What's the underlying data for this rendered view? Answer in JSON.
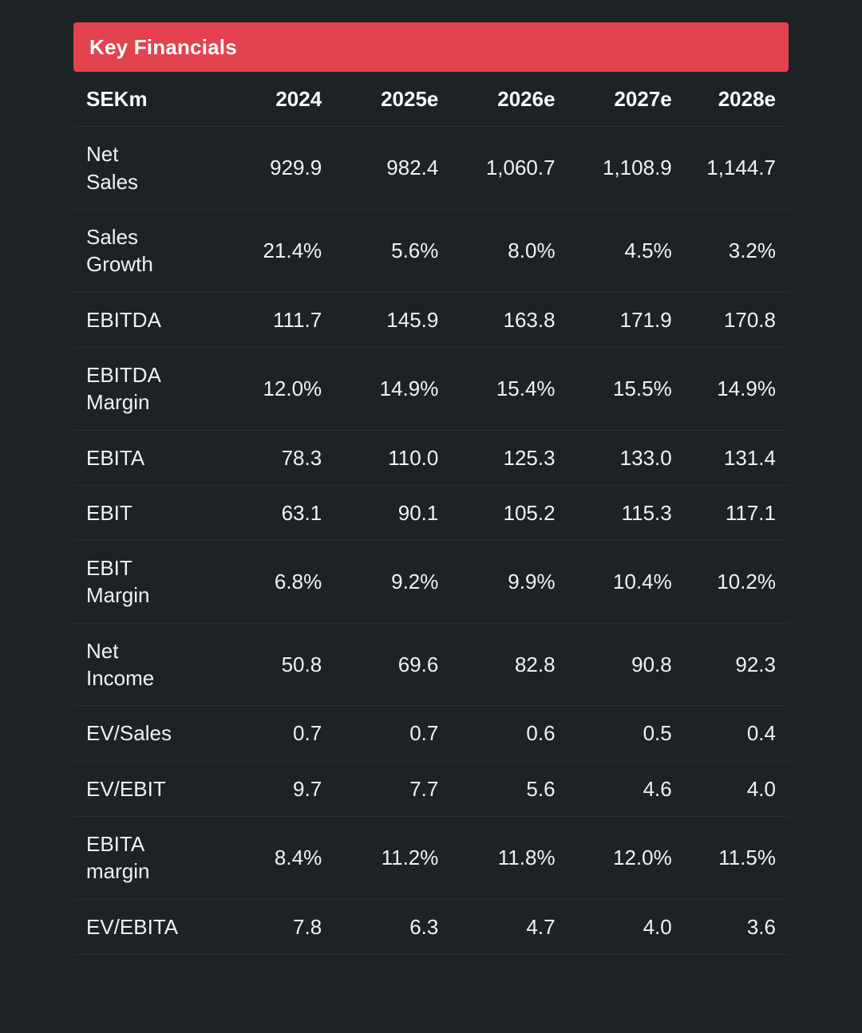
{
  "card": {
    "title": "Key Financials"
  },
  "table": {
    "unit_header": "SEKm",
    "columns": [
      "2024",
      "2025e",
      "2026e",
      "2027e",
      "2028e"
    ],
    "rows": [
      {
        "label": "Net\nSales",
        "values": [
          "929.9",
          "982.4",
          "1,060.7",
          "1,108.9",
          "1,144.7"
        ]
      },
      {
        "label": "Sales\nGrowth",
        "values": [
          "21.4%",
          "5.6%",
          "8.0%",
          "4.5%",
          "3.2%"
        ]
      },
      {
        "label": "EBITDA",
        "values": [
          "111.7",
          "145.9",
          "163.8",
          "171.9",
          "170.8"
        ]
      },
      {
        "label": "EBITDA\nMargin",
        "values": [
          "12.0%",
          "14.9%",
          "15.4%",
          "15.5%",
          "14.9%"
        ]
      },
      {
        "label": "EBITA",
        "values": [
          "78.3",
          "110.0",
          "125.3",
          "133.0",
          "131.4"
        ]
      },
      {
        "label": "EBIT",
        "values": [
          "63.1",
          "90.1",
          "105.2",
          "115.3",
          "117.1"
        ]
      },
      {
        "label": "EBIT\nMargin",
        "values": [
          "6.8%",
          "9.2%",
          "9.9%",
          "10.4%",
          "10.2%"
        ]
      },
      {
        "label": "Net\nIncome",
        "values": [
          "50.8",
          "69.6",
          "82.8",
          "90.8",
          "92.3"
        ]
      },
      {
        "label": "EV/Sales",
        "values": [
          "0.7",
          "0.7",
          "0.6",
          "0.5",
          "0.4"
        ]
      },
      {
        "label": "EV/EBIT",
        "values": [
          "9.7",
          "7.7",
          "5.6",
          "4.6",
          "4.0"
        ]
      },
      {
        "label": "EBITA\nmargin",
        "values": [
          "8.4%",
          "11.2%",
          "11.8%",
          "12.0%",
          "11.5%"
        ]
      },
      {
        "label": "EV/EBITA",
        "values": [
          "7.8",
          "6.3",
          "4.7",
          "4.0",
          "3.6"
        ]
      }
    ]
  },
  "colors": {
    "accent_red": "#e2434e",
    "background": "#1e2126",
    "text": "#f1f2f4",
    "separator": "#2b2f35",
    "next_card_background": "#0c0d10"
  }
}
